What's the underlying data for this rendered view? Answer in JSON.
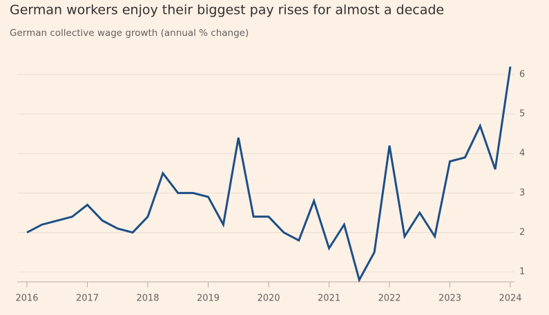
{
  "chart_data": {
    "type": "line",
    "title": "German workers enjoy their biggest pay rises for almost a decade",
    "subtitle": "German collective wage growth (annual % change)",
    "x": [
      2016,
      2016.25,
      2016.5,
      2016.75,
      2017,
      2017.25,
      2017.5,
      2017.75,
      2018,
      2018.25,
      2018.5,
      2018.75,
      2019,
      2019.25,
      2019.5,
      2019.75,
      2020,
      2020.25,
      2020.5,
      2020.75,
      2021,
      2021.25,
      2021.5,
      2021.75,
      2022,
      2022.25,
      2022.5,
      2022.75,
      2023,
      2023.25,
      2023.5,
      2023.75,
      2024
    ],
    "series": [
      {
        "color": "#1d4f86",
        "values": [
          2.0,
          2.2,
          2.3,
          2.4,
          2.7,
          2.3,
          2.1,
          2.0,
          2.4,
          3.5,
          3.0,
          3.0,
          2.9,
          2.2,
          4.4,
          2.4,
          2.4,
          2.0,
          1.8,
          2.8,
          1.6,
          2.2,
          0.8,
          1.5,
          4.2,
          1.9,
          2.5,
          1.9,
          3.8,
          3.9,
          4.7,
          3.6,
          6.2
        ]
      }
    ],
    "xlim": [
      2016,
      2024
    ],
    "xticks": [
      2016,
      2017,
      2018,
      2019,
      2020,
      2021,
      2022,
      2023,
      2024
    ],
    "ylim": [
      0.75,
      6.4
    ],
    "yticks": [
      1,
      2,
      3,
      4,
      5,
      6
    ],
    "grid": true
  }
}
